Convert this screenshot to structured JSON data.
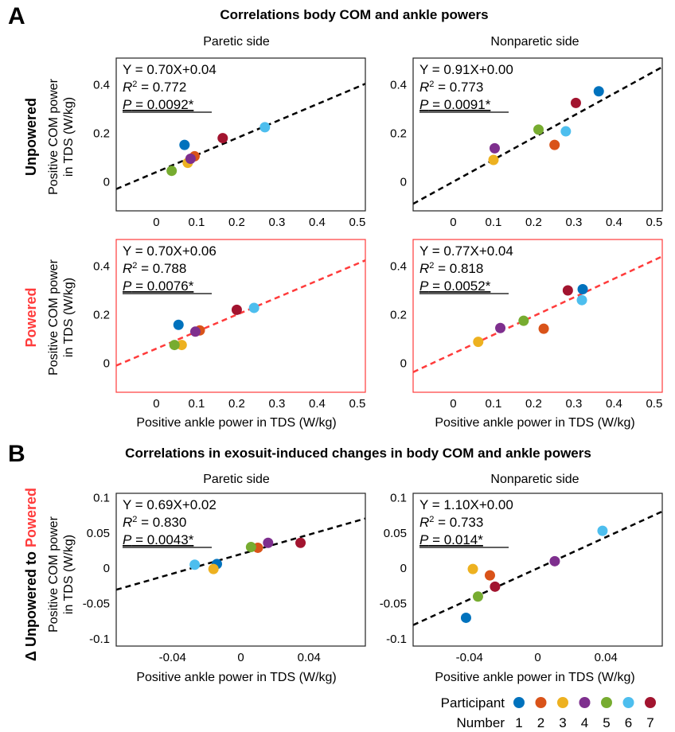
{
  "figure": {
    "panel_a_letter": "A",
    "panel_b_letter": "B",
    "panel_a_title": "Correlations body COM and ankle powers",
    "panel_b_title": "Correlations in exosuit-induced changes in body COM and ankle powers",
    "row_unpowered": "Unpowered",
    "row_powered": "Powered",
    "row_delta_prefix": "Δ Unpowered to ",
    "row_delta_highlight": "Powered",
    "col_paretic": "Paretic side",
    "col_nonparetic": "Nonparetic side",
    "ylabel_line1": "Positive COM power",
    "ylabel_line2": "in TDS (W/kg)",
    "xlabel": "Positive ankle power in TDS (W/kg)",
    "legend_title_line1": "Participant",
    "legend_title_line2": "Number"
  },
  "colors": {
    "participants": [
      "#0072bd",
      "#d95319",
      "#edb120",
      "#7e2f8e",
      "#77ac30",
      "#4dbeee",
      "#a2142f"
    ],
    "powered_accent": "#ff3b3b",
    "fit_black": "#000000"
  },
  "participants": [
    "1",
    "2",
    "3",
    "4",
    "5",
    "6",
    "7"
  ],
  "chart_data": [
    {
      "type": "scatter",
      "id": "unpowered-paretic",
      "xlim": [
        -0.1,
        0.52
      ],
      "ylim": [
        -0.12,
        0.51
      ],
      "xticks": [
        0,
        0.1,
        0.2,
        0.3,
        0.4,
        0.5
      ],
      "xtick_labels": [
        "0",
        "0.1",
        "0.2",
        "0.3",
        "0.4",
        "0.5"
      ],
      "yticks": [
        0,
        0.2,
        0.4
      ],
      "ytick_labels": [
        "0",
        "0.2",
        "0.4"
      ],
      "x": [
        0.07,
        0.095,
        0.078,
        0.085,
        0.038,
        0.27,
        0.165
      ],
      "y": [
        0.152,
        0.105,
        0.078,
        0.095,
        0.045,
        0.225,
        0.18
      ],
      "fit": {
        "slope": 0.7,
        "intercept": 0.04,
        "color": "black"
      },
      "stats": {
        "eq": "Y = 0.70X+0.04",
        "r2_value": "= 0.772",
        "p": "P = 0.0092*"
      }
    },
    {
      "type": "scatter",
      "id": "unpowered-nonparetic",
      "xlim": [
        -0.1,
        0.52
      ],
      "ylim": [
        -0.12,
        0.51
      ],
      "xticks": [
        0,
        0.1,
        0.2,
        0.3,
        0.4,
        0.5
      ],
      "xtick_labels": [
        "0",
        "0.1",
        "0.2",
        "0.3",
        "0.4",
        "0.5"
      ],
      "yticks": [
        0,
        0.2,
        0.4
      ],
      "ytick_labels": [
        "0",
        "0.2",
        "0.4"
      ],
      "x": [
        0.362,
        0.252,
        0.1,
        0.103,
        0.212,
        0.28,
        0.305
      ],
      "y": [
        0.373,
        0.152,
        0.09,
        0.138,
        0.215,
        0.208,
        0.325
      ],
      "fit": {
        "slope": 0.91,
        "intercept": 0.0,
        "color": "black"
      },
      "stats": {
        "eq": "Y = 0.91X+0.00",
        "r2_value": "= 0.773",
        "p": "P = 0.0091*"
      }
    },
    {
      "type": "scatter",
      "id": "powered-paretic",
      "xlim": [
        -0.1,
        0.52
      ],
      "ylim": [
        -0.12,
        0.51
      ],
      "xticks": [
        0,
        0.1,
        0.2,
        0.3,
        0.4,
        0.5
      ],
      "xtick_labels": [
        "0",
        "0.1",
        "0.2",
        "0.3",
        "0.4",
        "0.5"
      ],
      "yticks": [
        0,
        0.2,
        0.4
      ],
      "ytick_labels": [
        "0",
        "0.2",
        "0.4"
      ],
      "x": [
        0.055,
        0.108,
        0.063,
        0.097,
        0.045,
        0.243,
        0.2
      ],
      "y": [
        0.158,
        0.135,
        0.075,
        0.13,
        0.075,
        0.228,
        0.22
      ],
      "fit": {
        "slope": 0.7,
        "intercept": 0.06,
        "color": "red"
      },
      "stats": {
        "eq": "Y = 0.70X+0.06",
        "r2_value": "= 0.788",
        "p": "P = 0.0076*"
      }
    },
    {
      "type": "scatter",
      "id": "powered-nonparetic",
      "xlim": [
        -0.1,
        0.52
      ],
      "ylim": [
        -0.12,
        0.51
      ],
      "xticks": [
        0,
        0.1,
        0.2,
        0.3,
        0.4,
        0.5
      ],
      "xtick_labels": [
        "0",
        "0.1",
        "0.2",
        "0.3",
        "0.4",
        "0.5"
      ],
      "yticks": [
        0,
        0.2,
        0.4
      ],
      "ytick_labels": [
        "0",
        "0.2",
        "0.4"
      ],
      "x": [
        0.322,
        0.225,
        0.062,
        0.117,
        0.175,
        0.32,
        0.285
      ],
      "y": [
        0.305,
        0.142,
        0.088,
        0.145,
        0.175,
        0.26,
        0.3
      ],
      "fit": {
        "slope": 0.77,
        "intercept": 0.04,
        "color": "red"
      },
      "stats": {
        "eq": "Y = 0.77X+0.04",
        "r2_value": "= 0.818",
        "p": "P = 0.0052*"
      }
    },
    {
      "type": "scatter",
      "id": "delta-paretic",
      "xlim": [
        -0.073,
        0.073
      ],
      "ylim": [
        -0.11,
        0.106
      ],
      "xticks": [
        -0.04,
        0,
        0.04
      ],
      "xtick_labels": [
        "-0.04",
        "0",
        "0.04"
      ],
      "yticks": [
        -0.1,
        -0.05,
        0,
        0.05,
        0.1
      ],
      "ytick_labels": [
        "-0.1",
        "-0.05",
        "0",
        "0.05",
        "0.1"
      ],
      "x": [
        -0.014,
        0.01,
        -0.016,
        0.016,
        0.006,
        -0.027,
        0.035
      ],
      "y": [
        0.006,
        0.029,
        -0.001,
        0.036,
        0.03,
        0.005,
        0.036
      ],
      "fit": {
        "slope": 0.69,
        "intercept": 0.02,
        "color": "black"
      },
      "stats": {
        "eq": "Y = 0.69X+0.02",
        "r2_value": "= 0.830",
        "p": "P = 0.0043*"
      }
    },
    {
      "type": "scatter",
      "id": "delta-nonparetic",
      "xlim": [
        -0.073,
        0.073
      ],
      "ylim": [
        -0.11,
        0.106
      ],
      "xticks": [
        -0.04,
        0,
        0.04
      ],
      "xtick_labels": [
        "-0.04",
        "0",
        "0.04"
      ],
      "yticks": [
        -0.1,
        -0.05,
        0,
        0.05,
        0.1
      ],
      "ytick_labels": [
        "-0.1",
        "-0.05",
        "0",
        "0.05",
        "0.1"
      ],
      "x": [
        -0.042,
        -0.028,
        -0.038,
        0.01,
        -0.035,
        0.038,
        -0.025
      ],
      "y": [
        -0.07,
        -0.01,
        -0.001,
        0.01,
        -0.04,
        0.053,
        -0.026
      ],
      "fit": {
        "slope": 1.1,
        "intercept": 0.0,
        "color": "black"
      },
      "stats": {
        "eq": "Y = 1.10X+0.00",
        "r2_value": "= 0.733",
        "p": "P = 0.014*"
      }
    }
  ]
}
